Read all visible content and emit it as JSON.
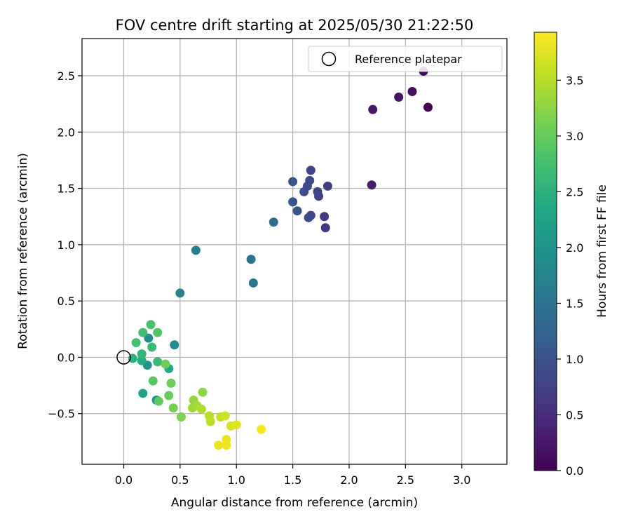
{
  "chart_data": {
    "type": "scatter",
    "title": "FOV centre drift starting at 2025/05/30 21:22:50",
    "xlabel": "Angular distance from reference (arcmin)",
    "ylabel": "Rotation from reference (arcmin)",
    "xlim": [
      -0.37,
      3.4
    ],
    "ylim": [
      -0.95,
      2.83
    ],
    "xticks": [
      0.0,
      0.5,
      1.0,
      1.5,
      2.0,
      2.5,
      3.0
    ],
    "xtick_labels": [
      "0.0",
      "0.5",
      "1.0",
      "1.5",
      "2.0",
      "2.5",
      "3.0"
    ],
    "yticks": [
      -0.5,
      0.0,
      0.5,
      1.0,
      1.5,
      2.0,
      2.5
    ],
    "ytick_labels": [
      "−0.5",
      "0.0",
      "0.5",
      "1.0",
      "1.5",
      "2.0",
      "2.5"
    ],
    "grid": true,
    "legend": {
      "placement": "top-right",
      "entries": [
        "Reference platepar"
      ]
    },
    "reference_point": {
      "x": 0.0,
      "y": 0.0,
      "label": "Reference platepar"
    },
    "colorbar": {
      "label": "Hours from first FF file",
      "colormap": "viridis",
      "range": [
        0.0,
        3.93
      ],
      "ticks": [
        0.0,
        0.5,
        1.0,
        1.5,
        2.0,
        2.5,
        3.0,
        3.5
      ],
      "tick_labels": [
        "0.0",
        "0.5",
        "1.0",
        "1.5",
        "2.0",
        "2.5",
        "3.0",
        "3.5"
      ]
    },
    "points": [
      {
        "x": 2.7,
        "y": 2.22,
        "c": 0.0
      },
      {
        "x": 2.66,
        "y": 2.54,
        "c": 0.1
      },
      {
        "x": 2.56,
        "y": 2.36,
        "c": 0.15
      },
      {
        "x": 2.44,
        "y": 2.31,
        "c": 0.2
      },
      {
        "x": 2.21,
        "y": 2.2,
        "c": 0.25
      },
      {
        "x": 2.2,
        "y": 1.53,
        "c": 0.3
      },
      {
        "x": 1.79,
        "y": 1.15,
        "c": 0.6
      },
      {
        "x": 1.78,
        "y": 1.25,
        "c": 0.65
      },
      {
        "x": 1.81,
        "y": 1.52,
        "c": 0.7
      },
      {
        "x": 1.73,
        "y": 1.43,
        "c": 0.75
      },
      {
        "x": 1.72,
        "y": 1.47,
        "c": 0.8
      },
      {
        "x": 1.66,
        "y": 1.66,
        "c": 0.8
      },
      {
        "x": 1.66,
        "y": 1.26,
        "c": 0.85
      },
      {
        "x": 1.64,
        "y": 1.24,
        "c": 0.85
      },
      {
        "x": 1.65,
        "y": 1.57,
        "c": 0.9
      },
      {
        "x": 1.63,
        "y": 1.52,
        "c": 0.9
      },
      {
        "x": 1.6,
        "y": 1.47,
        "c": 0.95
      },
      {
        "x": 1.54,
        "y": 1.3,
        "c": 1.0
      },
      {
        "x": 1.5,
        "y": 1.56,
        "c": 1.05
      },
      {
        "x": 1.5,
        "y": 1.38,
        "c": 1.05
      },
      {
        "x": 1.33,
        "y": 1.2,
        "c": 1.4
      },
      {
        "x": 1.13,
        "y": 0.87,
        "c": 1.5
      },
      {
        "x": 1.15,
        "y": 0.66,
        "c": 1.55
      },
      {
        "x": 0.64,
        "y": 0.95,
        "c": 1.65
      },
      {
        "x": 0.5,
        "y": 0.57,
        "c": 1.75
      },
      {
        "x": 0.45,
        "y": 0.11,
        "c": 1.85
      },
      {
        "x": 0.22,
        "y": 0.17,
        "c": 1.95
      },
      {
        "x": 0.21,
        "y": -0.07,
        "c": 2.0
      },
      {
        "x": 0.29,
        "y": -0.38,
        "c": 2.05
      },
      {
        "x": 0.17,
        "y": -0.32,
        "c": 2.25
      },
      {
        "x": 0.4,
        "y": -0.1,
        "c": 2.35
      },
      {
        "x": 0.16,
        "y": -0.03,
        "c": 2.4
      },
      {
        "x": 0.08,
        "y": -0.01,
        "c": 2.5
      },
      {
        "x": 0.16,
        "y": 0.03,
        "c": 2.55
      },
      {
        "x": 0.25,
        "y": 0.09,
        "c": 2.65
      },
      {
        "x": 0.3,
        "y": -0.04,
        "c": 2.65
      },
      {
        "x": 0.17,
        "y": 0.22,
        "c": 2.7
      },
      {
        "x": 0.11,
        "y": 0.13,
        "c": 2.75
      },
      {
        "x": 0.24,
        "y": 0.29,
        "c": 2.8
      },
      {
        "x": 0.3,
        "y": 0.22,
        "c": 2.85
      },
      {
        "x": 0.26,
        "y": -0.21,
        "c": 2.9
      },
      {
        "x": 0.31,
        "y": -0.39,
        "c": 2.95
      },
      {
        "x": 0.4,
        "y": -0.34,
        "c": 3.0
      },
      {
        "x": 0.37,
        "y": -0.06,
        "c": 3.05
      },
      {
        "x": 0.42,
        "y": -0.23,
        "c": 3.05
      },
      {
        "x": 0.44,
        "y": -0.45,
        "c": 3.1
      },
      {
        "x": 0.51,
        "y": -0.53,
        "c": 3.15
      },
      {
        "x": 0.7,
        "y": -0.31,
        "c": 3.25
      },
      {
        "x": 0.62,
        "y": -0.38,
        "c": 3.3
      },
      {
        "x": 0.61,
        "y": -0.45,
        "c": 3.35
      },
      {
        "x": 0.65,
        "y": -0.43,
        "c": 3.4
      },
      {
        "x": 0.69,
        "y": -0.46,
        "c": 3.45
      },
      {
        "x": 0.76,
        "y": -0.52,
        "c": 3.5
      },
      {
        "x": 0.77,
        "y": -0.57,
        "c": 3.55
      },
      {
        "x": 0.86,
        "y": -0.53,
        "c": 3.6
      },
      {
        "x": 0.9,
        "y": -0.52,
        "c": 3.65
      },
      {
        "x": 0.95,
        "y": -0.61,
        "c": 3.7
      },
      {
        "x": 1.0,
        "y": -0.6,
        "c": 3.75
      },
      {
        "x": 0.84,
        "y": -0.78,
        "c": 3.8
      },
      {
        "x": 0.91,
        "y": -0.73,
        "c": 3.8
      },
      {
        "x": 0.91,
        "y": -0.78,
        "c": 3.85
      },
      {
        "x": 1.22,
        "y": -0.64,
        "c": 3.9
      }
    ]
  }
}
